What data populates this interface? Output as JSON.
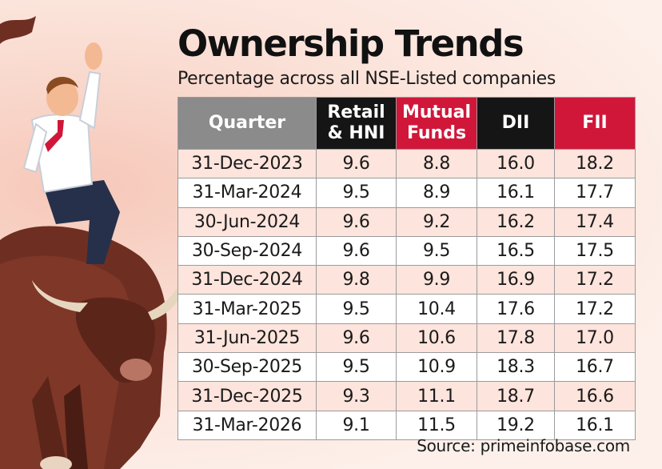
{
  "title": "Ownership Trends",
  "subtitle": "Percentage across all NSE-Listed companies",
  "table": {
    "headers": {
      "quarter": "Quarter",
      "retail": [
        "Retail",
        "& HNI"
      ],
      "mutual": [
        "Mutual",
        "Funds"
      ],
      "dii": "DII",
      "fii": "FII"
    },
    "rows": [
      {
        "quarter": "31-Dec-2023",
        "retail": "9.6",
        "mutual": "8.8",
        "dii": "16.0",
        "fii": "18.2"
      },
      {
        "quarter": "31-Mar-2024",
        "retail": "9.5",
        "mutual": "8.9",
        "dii": "16.1",
        "fii": "17.7"
      },
      {
        "quarter": "30-Jun-2024",
        "retail": "9.6",
        "mutual": "9.2",
        "dii": "16.2",
        "fii": "17.4"
      },
      {
        "quarter": "30-Sep-2024",
        "retail": "9.6",
        "mutual": "9.5",
        "dii": "16.5",
        "fii": "17.5"
      },
      {
        "quarter": "31-Dec-2024",
        "retail": "9.8",
        "mutual": "9.9",
        "dii": "16.9",
        "fii": "17.2"
      },
      {
        "quarter": "31-Mar-2025",
        "retail": "9.5",
        "mutual": "10.4",
        "dii": "17.6",
        "fii": "17.2"
      },
      {
        "quarter": "31-Jun-2025",
        "retail": "9.6",
        "mutual": "10.6",
        "dii": "17.8",
        "fii": "17.0"
      },
      {
        "quarter": "30-Sep-2025",
        "retail": "9.5",
        "mutual": "10.9",
        "dii": "18.3",
        "fii": "16.7"
      },
      {
        "quarter": "31-Dec-2025",
        "retail": "9.3",
        "mutual": "11.1",
        "dii": "18.7",
        "fii": "16.6"
      },
      {
        "quarter": "31-Mar-2026",
        "retail": "9.1",
        "mutual": "11.5",
        "dii": "19.2",
        "fii": "16.1"
      }
    ]
  },
  "source": "Source: primeinfobase.com",
  "illustration": {
    "icon": "bull-rider-illustration"
  },
  "colors": {
    "accent_red": "#d0173a",
    "header_grey": "#8b8b8b",
    "header_black": "#151515",
    "row_tint": "#fde4dc"
  }
}
